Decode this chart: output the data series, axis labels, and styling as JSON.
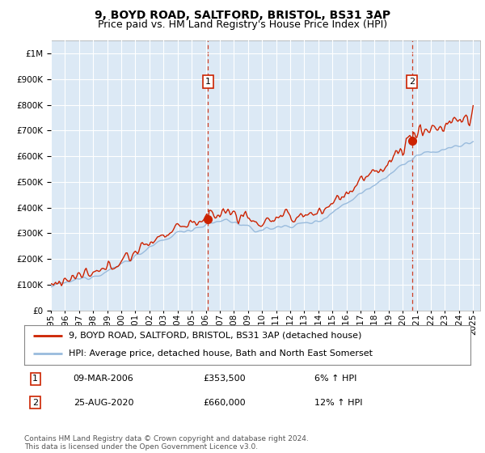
{
  "title": "9, BOYD ROAD, SALTFORD, BRISTOL, BS31 3AP",
  "subtitle": "Price paid vs. HM Land Registry's House Price Index (HPI)",
  "legend_line1": "9, BOYD ROAD, SALTFORD, BRISTOL, BS31 3AP (detached house)",
  "legend_line2": "HPI: Average price, detached house, Bath and North East Somerset",
  "footnote": "Contains HM Land Registry data © Crown copyright and database right 2024.\nThis data is licensed under the Open Government Licence v3.0.",
  "sale1_date": "09-MAR-2006",
  "sale1_price": "£353,500",
  "sale1_hpi": "6% ↑ HPI",
  "sale1_year": 2006.17,
  "sale1_value": 353500,
  "sale2_date": "25-AUG-2020",
  "sale2_price": "£660,000",
  "sale2_hpi": "12% ↑ HPI",
  "sale2_year": 2020.65,
  "sale2_value": 660000,
  "ylim": [
    0,
    1050000
  ],
  "xlim_start": 1995.0,
  "xlim_end": 2025.5,
  "bg_color": "#dce9f5",
  "red_color": "#cc2200",
  "blue_color": "#99bbdd",
  "grid_color": "#ffffff",
  "title_fontsize": 10,
  "subtitle_fontsize": 9,
  "tick_fontsize": 7.5,
  "legend_fontsize": 8,
  "footnote_fontsize": 6.5
}
